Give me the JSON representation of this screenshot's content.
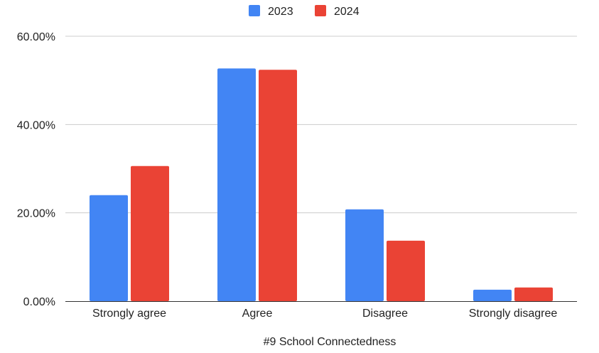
{
  "chart_data": {
    "type": "bar",
    "title": "",
    "xlabel": "#9 School Connectedness",
    "ylabel": "",
    "categories": [
      "Strongly agree",
      "Agree",
      "Disagree",
      "Strongly disagree"
    ],
    "series": [
      {
        "name": "2023",
        "color": "#4285F4",
        "values": [
          24.0,
          52.7,
          20.8,
          2.6
        ]
      },
      {
        "name": "2024",
        "color": "#EA4335",
        "values": [
          30.6,
          52.4,
          13.7,
          3.1
        ]
      }
    ],
    "ylim": [
      0,
      60
    ],
    "yticks": [
      {
        "value": 0,
        "label": "0.00%"
      },
      {
        "value": 20,
        "label": "20.00%"
      },
      {
        "value": 40,
        "label": "40.00%"
      },
      {
        "value": 60,
        "label": "60.00%"
      }
    ],
    "grid": true,
    "legend_position": "top-center"
  }
}
